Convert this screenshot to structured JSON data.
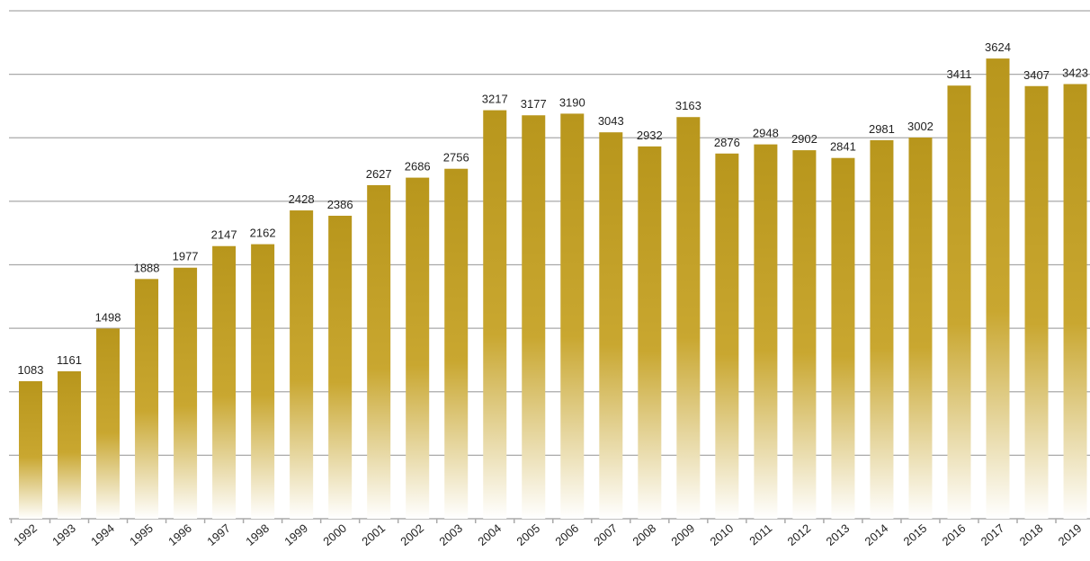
{
  "chart_data": {
    "type": "bar",
    "title": "",
    "xlabel": "",
    "ylabel": "",
    "categories": [
      "1992",
      "1993",
      "1994",
      "1995",
      "1996",
      "1997",
      "1998",
      "1999",
      "2000",
      "2001",
      "2002",
      "2003",
      "2004",
      "2005",
      "2006",
      "2007",
      "2008",
      "2009",
      "2010",
      "2011",
      "2012",
      "2013",
      "2014",
      "2015",
      "2016",
      "2017",
      "2018",
      "2019"
    ],
    "values": [
      1083,
      1161,
      1498,
      1888,
      1977,
      2147,
      2162,
      2428,
      2386,
      2627,
      2686,
      2756,
      3217,
      3177,
      3190,
      3043,
      2932,
      3163,
      2876,
      2948,
      2902,
      2841,
      2981,
      3002,
      3411,
      3624,
      3407,
      3423
    ],
    "ylim": [
      0,
      4000
    ],
    "grid": true,
    "legend": "none",
    "data_labels": true,
    "bar_color_top": "#b8961c",
    "bar_color_bottom": "#ffffff"
  }
}
